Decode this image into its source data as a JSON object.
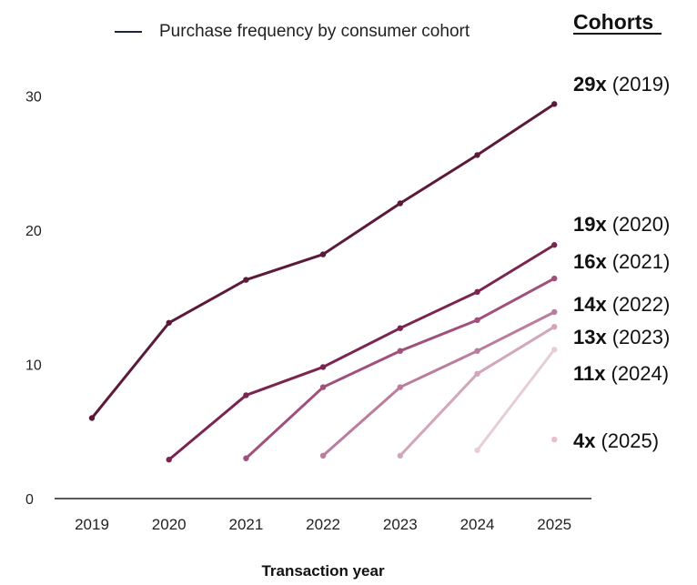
{
  "legend": {
    "label": "Purchase frequency by consumer cohort"
  },
  "cohorts_heading": "Cohorts",
  "chart_data": {
    "type": "line",
    "x": [
      2019,
      2020,
      2021,
      2022,
      2023,
      2024,
      2025
    ],
    "xlabel": "Transaction year",
    "ylabel": "",
    "ylim": [
      0,
      30
    ],
    "yticks": [
      0,
      10,
      20,
      30
    ],
    "grid": false,
    "legend_position": "top",
    "series": [
      {
        "cohort": "2019",
        "multiplier": "29x",
        "year_label": "(2019)",
        "color": "#5c1a3a",
        "x": [
          2019,
          2020,
          2021,
          2022,
          2023,
          2024,
          2025
        ],
        "values": [
          6,
          13.1,
          16.3,
          18.2,
          22,
          25.6,
          29.4
        ]
      },
      {
        "cohort": "2020",
        "multiplier": "19x",
        "year_label": "(2020)",
        "color": "#7a2450",
        "x": [
          2020,
          2021,
          2022,
          2023,
          2024,
          2025
        ],
        "values": [
          2.9,
          7.7,
          9.8,
          12.7,
          15.4,
          18.9
        ]
      },
      {
        "cohort": "2021",
        "multiplier": "16x",
        "year_label": "(2021)",
        "color": "#a0507a",
        "x": [
          2021,
          2022,
          2023,
          2024,
          2025
        ],
        "values": [
          3.0,
          8.3,
          11.0,
          13.3,
          16.4
        ]
      },
      {
        "cohort": "2022",
        "multiplier": "14x",
        "year_label": "(2022)",
        "color": "#bb7d9d",
        "x": [
          2022,
          2023,
          2024,
          2025
        ],
        "values": [
          3.2,
          8.3,
          11.0,
          13.9
        ]
      },
      {
        "cohort": "2023",
        "multiplier": "13x",
        "year_label": "(2023)",
        "color": "#d2a6bb",
        "x": [
          2023,
          2024,
          2025
        ],
        "values": [
          3.2,
          9.3,
          12.8
        ]
      },
      {
        "cohort": "2024",
        "multiplier": "11x",
        "year_label": "(2024)",
        "color": "#e6cdd8",
        "x": [
          2024,
          2025
        ],
        "values": [
          3.6,
          11.1
        ]
      },
      {
        "cohort": "2025",
        "multiplier": "4x",
        "year_label": "(2025)",
        "color": "#ebbdd0",
        "x": [
          2025
        ],
        "values": [
          4.4
        ]
      }
    ]
  },
  "colors": {
    "axis": "#222222",
    "legend_swatch": "#1f2340"
  }
}
